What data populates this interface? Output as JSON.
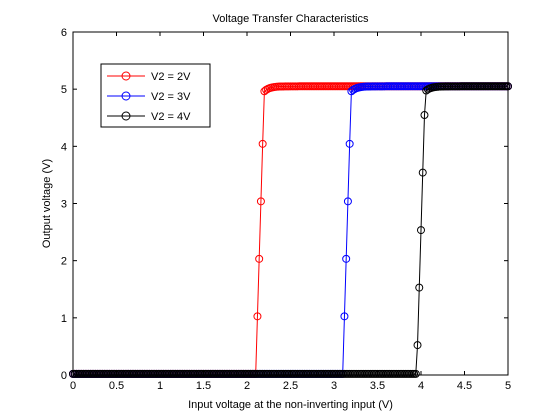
{
  "chart_data": {
    "type": "line",
    "title": "Voltage Transfer Characteristics",
    "xlabel": "Input voltage at the non-inverting input (V)",
    "ylabel": "Output voltage (V)",
    "xlim": [
      0,
      5
    ],
    "ylim": [
      0,
      6
    ],
    "xticks": [
      0,
      0.5,
      1,
      1.5,
      2,
      2.5,
      3,
      3.5,
      4,
      4.5,
      5
    ],
    "xtick_labels": [
      "0",
      "0.5",
      "1",
      "1.5",
      "2",
      "2.5",
      "3",
      "3.5",
      "4",
      "4.5",
      "5"
    ],
    "yticks": [
      0,
      1,
      2,
      3,
      4,
      5,
      6
    ],
    "ytick_labels": [
      "0",
      "1",
      "2",
      "3",
      "4",
      "5",
      "6"
    ],
    "grid": false,
    "legend_position": "top-left",
    "marker": "circle",
    "series": [
      {
        "name": "V2 = 2V",
        "color": "#ff0000",
        "switch_x": 2.15,
        "low_y": 0.02,
        "high_y": 5.05
      },
      {
        "name": "V2 = 3V",
        "color": "#0000ff",
        "switch_x": 3.15,
        "low_y": 0.02,
        "high_y": 5.05
      },
      {
        "name": "V2 = 4V",
        "color": "#000000",
        "switch_x": 4.0,
        "low_y": 0.02,
        "high_y": 5.05
      }
    ]
  }
}
